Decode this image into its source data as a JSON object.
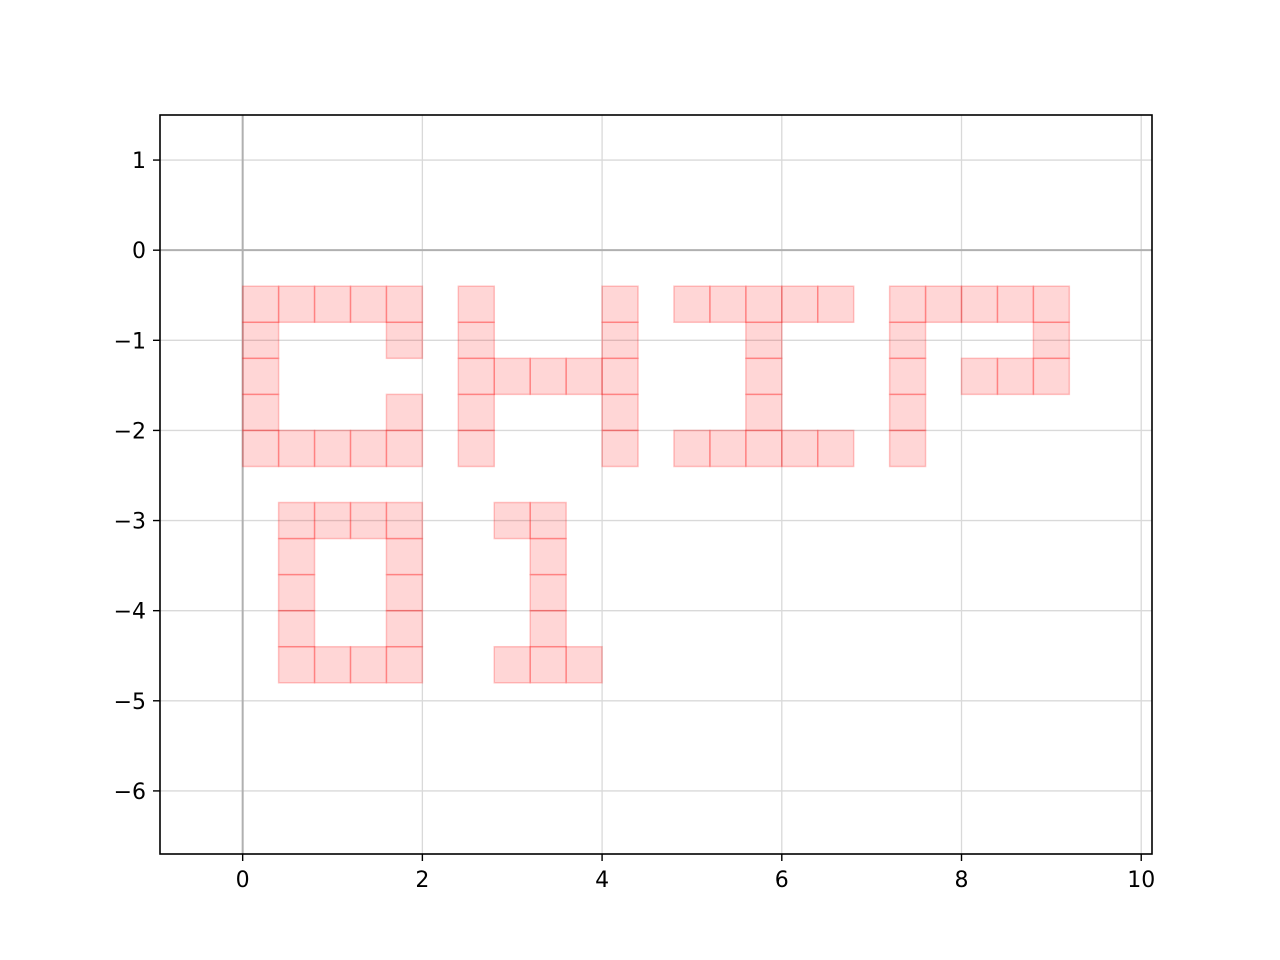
{
  "chart_data": {
    "type": "scatter",
    "title": "",
    "xlabel": "",
    "ylabel": "",
    "xlim": [
      -0.92,
      10.12
    ],
    "ylim": [
      -6.7,
      1.5
    ],
    "x_ticks": [
      0,
      2,
      4,
      6,
      8,
      10
    ],
    "y_ticks": [
      1,
      0,
      -1,
      -2,
      -3,
      -4,
      -5,
      -6
    ],
    "x_tick_labels": [
      "0",
      "2",
      "4",
      "6",
      "8",
      "10"
    ],
    "y_tick_labels": [
      "1",
      "0",
      "−1",
      "−2",
      "−3",
      "−4",
      "−5",
      "−6"
    ],
    "grid": true,
    "reference_lines": {
      "x": 0,
      "y": 0
    },
    "cell_size": 0.4,
    "colors": {
      "cell_fill": "#ff0000",
      "cell_fill_opacity": 0.16,
      "cell_edge": "#ff0000",
      "cell_edge_opacity": 0.22,
      "grid": "#d9d9d9",
      "reference": "#b0b0b0",
      "frame": "#000000"
    },
    "series": [
      {
        "points": [
          [
            0.2,
            -0.6
          ],
          [
            0.6,
            -0.6
          ],
          [
            1.0,
            -0.6
          ],
          [
            1.4,
            -0.6
          ],
          [
            1.8,
            -0.6
          ],
          [
            0.2,
            -1.0
          ],
          [
            1.8,
            -1.0
          ],
          [
            0.2,
            -1.4
          ],
          [
            0.2,
            -1.8
          ],
          [
            1.8,
            -1.8
          ],
          [
            0.2,
            -2.2
          ],
          [
            0.6,
            -2.2
          ],
          [
            1.0,
            -2.2
          ],
          [
            1.4,
            -2.2
          ],
          [
            1.8,
            -2.2
          ],
          [
            2.6,
            -0.6
          ],
          [
            4.2,
            -0.6
          ],
          [
            2.6,
            -1.0
          ],
          [
            4.2,
            -1.0
          ],
          [
            2.6,
            -1.4
          ],
          [
            3.0,
            -1.4
          ],
          [
            3.4,
            -1.4
          ],
          [
            3.8,
            -1.4
          ],
          [
            4.2,
            -1.4
          ],
          [
            2.6,
            -1.8
          ],
          [
            4.2,
            -1.8
          ],
          [
            2.6,
            -2.2
          ],
          [
            4.2,
            -2.2
          ],
          [
            5.0,
            -0.6
          ],
          [
            5.4,
            -0.6
          ],
          [
            5.8,
            -0.6
          ],
          [
            6.2,
            -0.6
          ],
          [
            6.6,
            -0.6
          ],
          [
            5.8,
            -1.0
          ],
          [
            5.8,
            -1.4
          ],
          [
            5.8,
            -1.8
          ],
          [
            5.0,
            -2.2
          ],
          [
            5.4,
            -2.2
          ],
          [
            5.8,
            -2.2
          ],
          [
            6.2,
            -2.2
          ],
          [
            6.6,
            -2.2
          ],
          [
            7.4,
            -0.6
          ],
          [
            7.8,
            -0.6
          ],
          [
            8.2,
            -0.6
          ],
          [
            8.6,
            -0.6
          ],
          [
            9.0,
            -0.6
          ],
          [
            7.4,
            -1.0
          ],
          [
            9.0,
            -1.0
          ],
          [
            7.4,
            -1.4
          ],
          [
            8.2,
            -1.4
          ],
          [
            8.6,
            -1.4
          ],
          [
            9.0,
            -1.4
          ],
          [
            7.4,
            -1.8
          ],
          [
            7.4,
            -2.2
          ],
          [
            0.6,
            -3.0
          ],
          [
            1.0,
            -3.0
          ],
          [
            1.4,
            -3.0
          ],
          [
            1.8,
            -3.0
          ],
          [
            0.6,
            -3.4
          ],
          [
            1.8,
            -3.4
          ],
          [
            0.6,
            -3.8
          ],
          [
            1.8,
            -3.8
          ],
          [
            0.6,
            -4.2
          ],
          [
            1.8,
            -4.2
          ],
          [
            0.6,
            -4.6
          ],
          [
            1.0,
            -4.6
          ],
          [
            1.4,
            -4.6
          ],
          [
            1.8,
            -4.6
          ],
          [
            3.0,
            -3.0
          ],
          [
            3.4,
            -3.0
          ],
          [
            3.4,
            -3.4
          ],
          [
            3.4,
            -3.8
          ],
          [
            3.4,
            -4.2
          ],
          [
            3.0,
            -4.6
          ],
          [
            3.4,
            -4.6
          ],
          [
            3.8,
            -4.6
          ]
        ]
      }
    ]
  }
}
